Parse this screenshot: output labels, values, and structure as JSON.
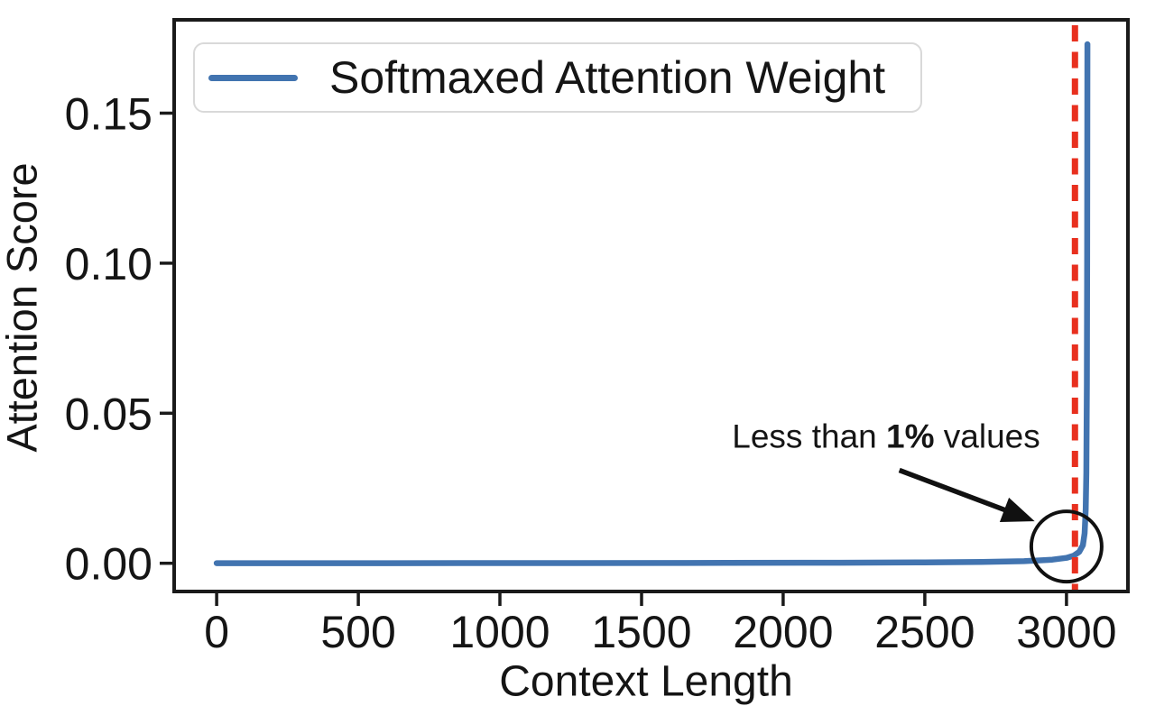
{
  "chart_data": {
    "type": "line",
    "title": "",
    "xlabel": "Context Length",
    "ylabel": "Attention Score",
    "x_ticks": [
      0,
      500,
      1000,
      1500,
      2000,
      2500,
      3000
    ],
    "y_ticks": [
      0,
      0.05,
      0.1,
      0.15
    ],
    "y_tick_labels": [
      "0.00",
      "0.05",
      "0.10",
      "0.15"
    ],
    "xlim": [
      -150,
      3217
    ],
    "ylim": [
      -0.0094,
      0.1811
    ],
    "grid": false,
    "legend": {
      "position": "upper-left",
      "entries": [
        {
          "label": "Softmaxed Attention Weight",
          "color": "#4274b0"
        }
      ]
    },
    "series": [
      {
        "name": "Softmaxed Attention Weight",
        "color": "#4274b0",
        "points": [
          [
            0,
            2e-05
          ],
          [
            600,
            4e-05
          ],
          [
            1200,
            7e-05
          ],
          [
            1800,
            0.00012
          ],
          [
            2200,
            0.0002
          ],
          [
            2500,
            0.0003
          ],
          [
            2700,
            0.00045
          ],
          [
            2850,
            0.0007
          ],
          [
            2950,
            0.0012
          ],
          [
            3000,
            0.0018
          ],
          [
            3025,
            0.0025
          ],
          [
            3045,
            0.0038
          ],
          [
            3058,
            0.006
          ],
          [
            3064,
            0.01
          ],
          [
            3068,
            0.018
          ],
          [
            3070,
            0.03
          ],
          [
            3072,
            0.06
          ],
          [
            3073,
            0.1
          ],
          [
            3074,
            0.173
          ]
        ]
      }
    ],
    "reference_line": {
      "axis": "x",
      "value": 3030,
      "color": "#e8301f",
      "style": "dashed"
    },
    "annotation": {
      "prefix": "Less than ",
      "bold": "1%",
      "suffix": " values",
      "circle_center": [
        3000,
        0.0056
      ],
      "circle_radius_px": 39,
      "arrow_from": [
        2410,
        0.031
      ],
      "arrow_to": [
        2888,
        0.014
      ]
    },
    "axis_color": "#1a1a1a",
    "text_color": "#151515"
  }
}
